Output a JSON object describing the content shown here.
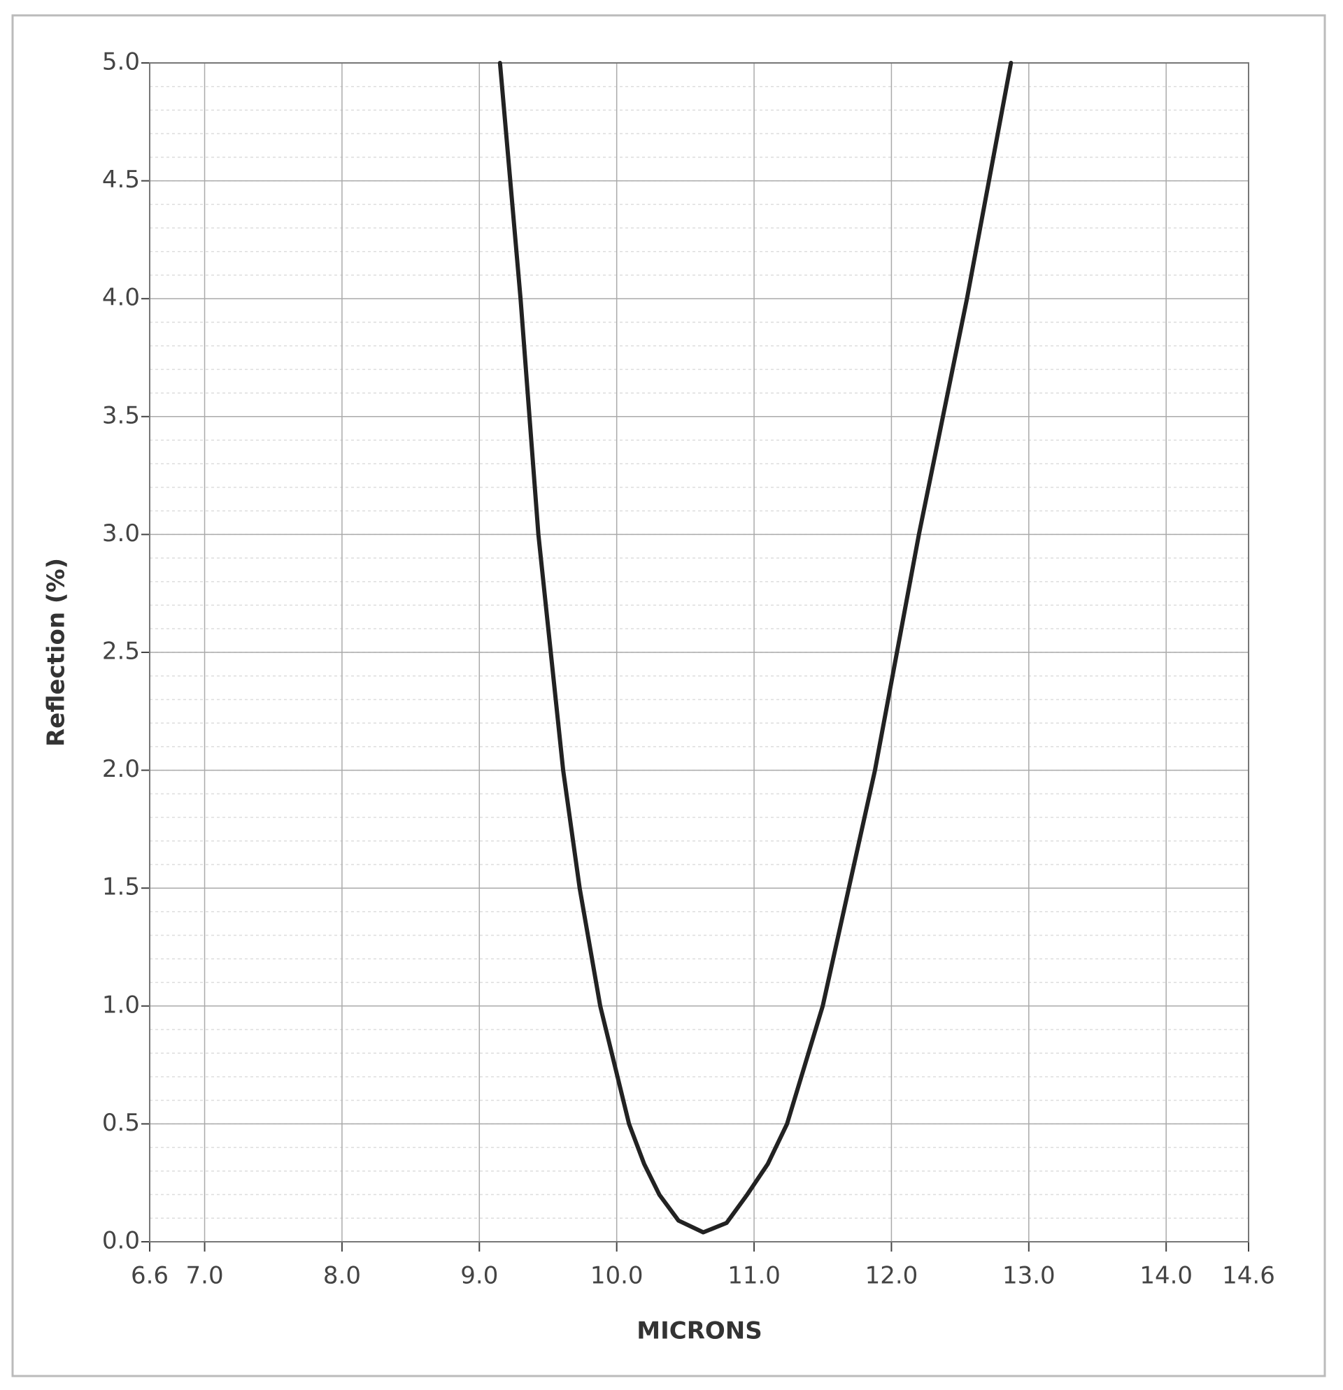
{
  "chart_data": {
    "type": "line",
    "x_label": "MICRONS",
    "y_label": "Reflection (%)",
    "x": [
      9.15,
      9.3,
      9.43,
      9.52,
      9.61,
      9.73,
      9.88,
      10.09,
      10.2,
      10.31,
      10.45,
      10.63,
      10.8,
      10.95,
      11.1,
      11.24,
      11.5,
      11.69,
      11.88,
      12.04,
      12.2,
      12.55,
      12.87
    ],
    "values": [
      5.0,
      4.0,
      3.0,
      2.5,
      2.0,
      1.5,
      1.0,
      0.5,
      0.33,
      0.2,
      0.09,
      0.04,
      0.08,
      0.2,
      0.33,
      0.5,
      1.0,
      1.5,
      2.0,
      2.5,
      3.0,
      4.0,
      5.0
    ],
    "color": "#222222",
    "xlim": [
      6.6,
      14.6
    ],
    "xticks": [
      6.6,
      {
        "value": 7,
        "label": "7.0"
      },
      {
        "value": 8,
        "label": "8.0"
      },
      {
        "value": 9,
        "label": "9.0"
      },
      {
        "value": 10,
        "label": "10.0"
      },
      {
        "value": 11,
        "label": "11.0"
      },
      {
        "value": 12,
        "label": "12.0"
      },
      {
        "value": 13,
        "label": "13.0"
      },
      {
        "value": 14,
        "label": "14.0"
      },
      14.6
    ],
    "ylim": [
      0,
      5
    ],
    "yticks": [
      {
        "value": 0,
        "label": "0.0"
      },
      0.5,
      {
        "value": 1,
        "label": "1.0"
      },
      1.5,
      {
        "value": 2,
        "label": "2.0"
      },
      2.5,
      {
        "value": 3,
        "label": "3.0"
      },
      3.5,
      {
        "value": 4,
        "label": "4.0"
      },
      4.5,
      {
        "value": 5,
        "label": "5.0"
      }
    ],
    "grid": true,
    "minor_grid": true
  }
}
